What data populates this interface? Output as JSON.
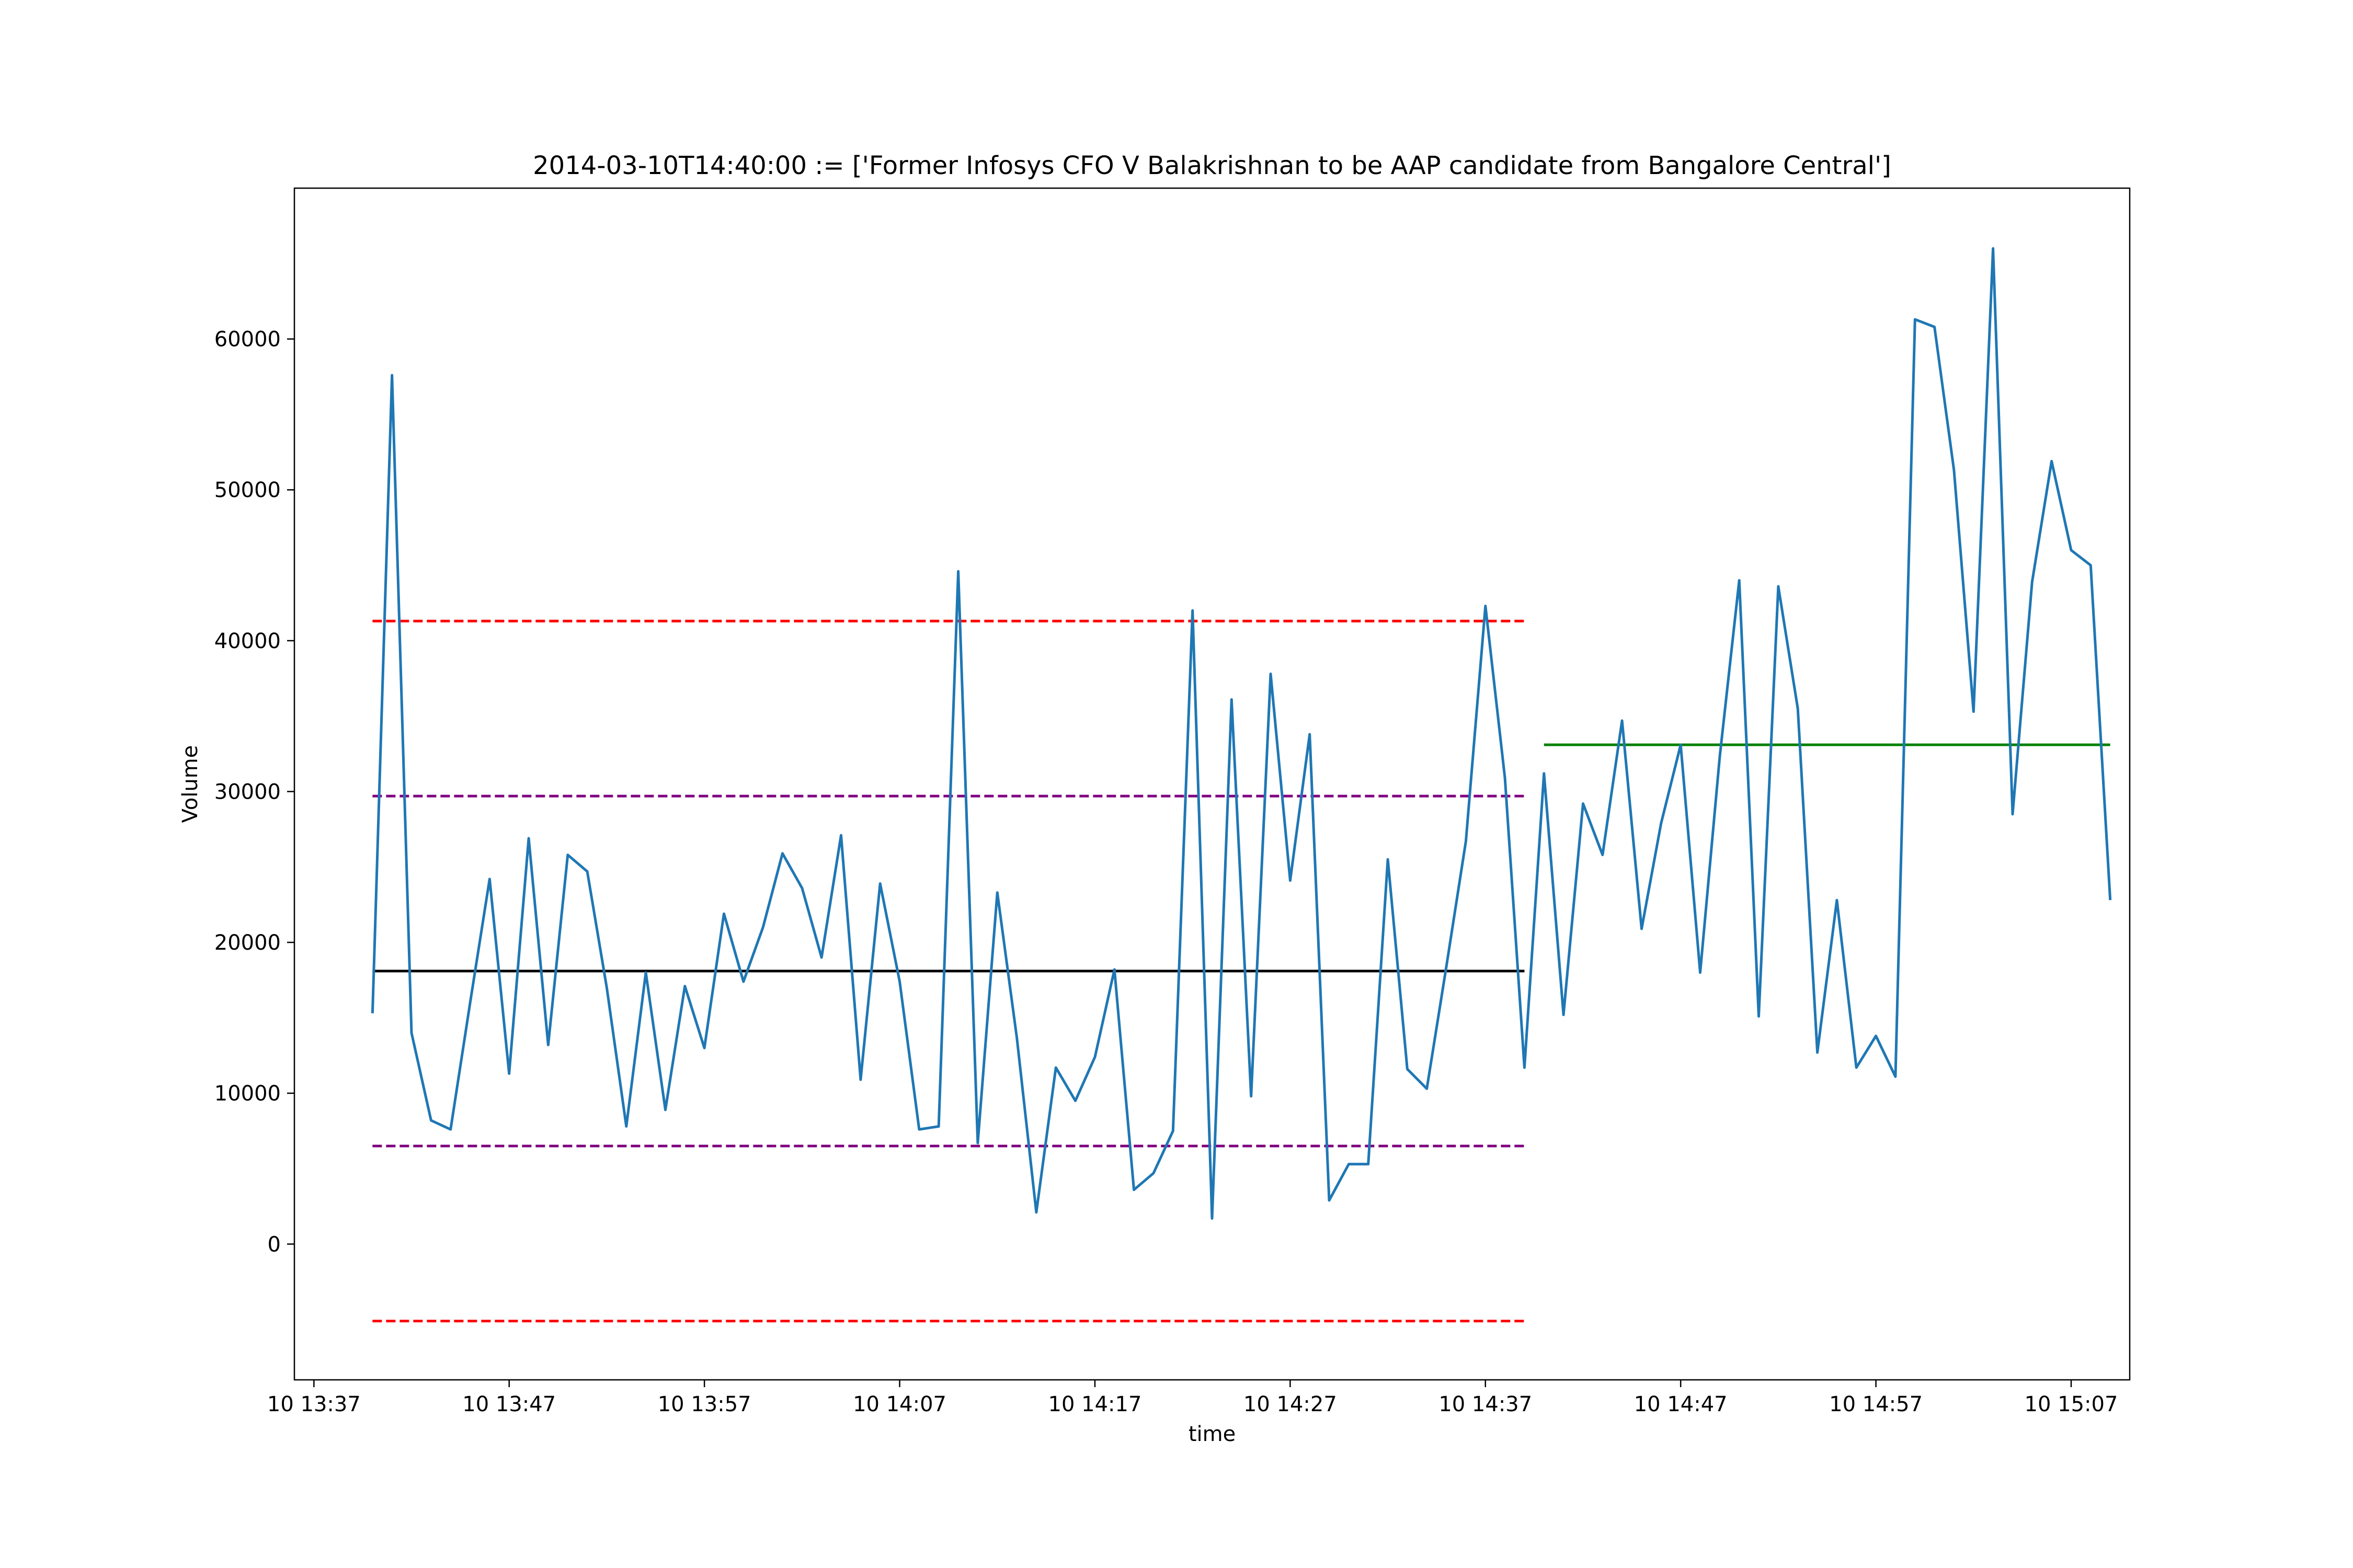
{
  "chart_data": {
    "type": "line",
    "title": "2014-03-10T14:40:00 := ['Former Infosys CFO V Balakrishnan to be AAP candidate from Bangalore Central']",
    "xlabel": "time",
    "ylabel": "Volume",
    "xlim": [
      "2014-03-10 13:36:00",
      "2014-03-10 15:10:00"
    ],
    "ylim": [
      -9000,
      70000
    ],
    "grid": false,
    "x_ticks": [
      "10 13:37",
      "10 13:47",
      "10 13:57",
      "10 14:07",
      "10 14:17",
      "10 14:27",
      "10 14:37",
      "10 14:47",
      "10 14:57",
      "10 15:07"
    ],
    "y_ticks": [
      0,
      10000,
      20000,
      30000,
      40000,
      50000,
      60000
    ],
    "colors": {
      "series": "#1f77b4",
      "mean_before": "#000000",
      "mean_after": "#008000",
      "band_outer": "#ff0000",
      "band_inner": "#800080"
    },
    "series": [
      {
        "start": "2014-03-10 13:40:00",
        "interval_minutes": 1,
        "values": [
          15300,
          57600,
          14000,
          8200,
          7600,
          16000,
          24200,
          11300,
          26900,
          13200,
          25800,
          24700,
          17000,
          7800,
          18000,
          8900,
          17100,
          13000,
          21900,
          17400,
          21000,
          25900,
          23600,
          19000,
          27100,
          10900,
          23900,
          17400,
          7600,
          7800,
          44600,
          6700,
          23300,
          13700,
          2100,
          11700,
          9500,
          12400,
          18200,
          3600,
          4700,
          7500,
          42000,
          1700,
          36100,
          9800,
          37800,
          24100,
          33800,
          2900,
          5300,
          5300,
          25500,
          11600,
          10300,
          18400,
          26700,
          42300,
          30900,
          11700,
          31200,
          15200,
          29200,
          25800,
          34700,
          20900,
          27900,
          33100,
          18000,
          32300,
          44000,
          15100,
          43600,
          35500,
          12700,
          22800,
          11700,
          13800,
          11100,
          61300,
          60800,
          51300,
          35300,
          66000,
          28500,
          43900,
          51900,
          46000,
          45000,
          22800
        ]
      }
    ],
    "reference_lines": [
      {
        "kind": "mean-before",
        "style": "solid",
        "y": 18100,
        "x_from": "2014-03-10 13:40:00",
        "x_to": "2014-03-10 14:39:00"
      },
      {
        "kind": "mean-after",
        "style": "solid",
        "y": 33100,
        "x_from": "2014-03-10 14:40:00",
        "x_to": "2014-03-10 15:09:00"
      },
      {
        "kind": "upper-outer-band",
        "style": "dashed",
        "y": 41300,
        "x_from": "2014-03-10 13:40:00",
        "x_to": "2014-03-10 14:39:00"
      },
      {
        "kind": "upper-inner-band",
        "style": "dashed",
        "y": 29700,
        "x_from": "2014-03-10 13:40:00",
        "x_to": "2014-03-10 14:39:00"
      },
      {
        "kind": "lower-inner-band",
        "style": "dashed",
        "y": 6500,
        "x_from": "2014-03-10 13:40:00",
        "x_to": "2014-03-10 14:39:00"
      },
      {
        "kind": "lower-outer-band",
        "style": "dashed",
        "y": -5100,
        "x_from": "2014-03-10 13:40:00",
        "x_to": "2014-03-10 14:39:00"
      }
    ]
  }
}
